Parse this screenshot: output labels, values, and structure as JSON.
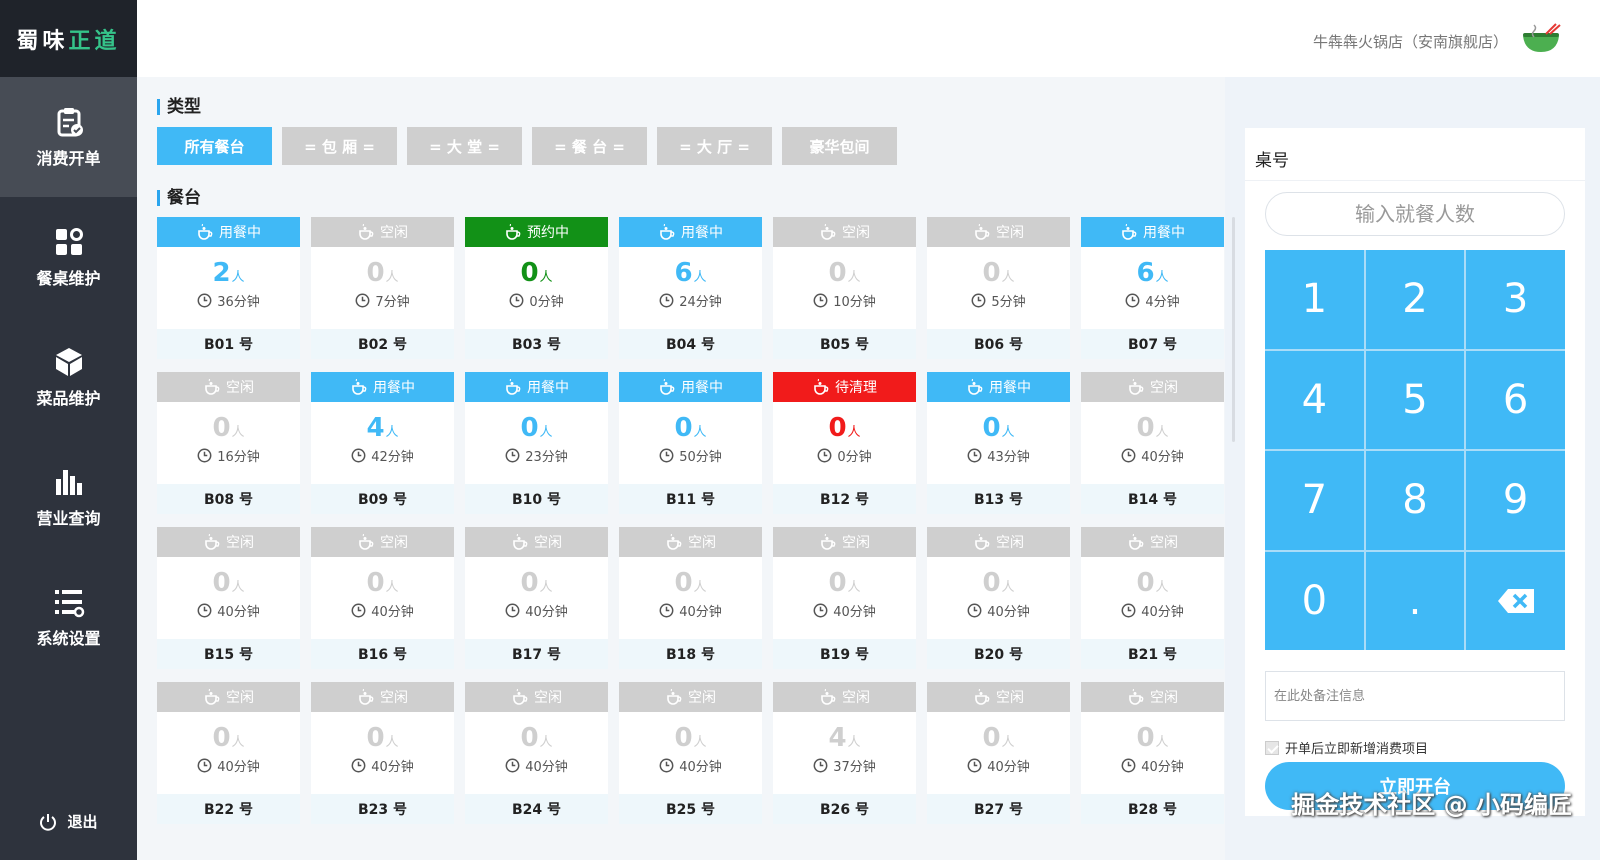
{
  "sidebar": {
    "logo": [
      "蜀",
      "味",
      "正",
      "道"
    ],
    "items": [
      {
        "label": "消费开单",
        "icon": "clipboard-icon"
      },
      {
        "label": "餐桌维护",
        "icon": "apps-icon"
      },
      {
        "label": "菜品维护",
        "icon": "cube-icon"
      },
      {
        "label": "营业查询",
        "icon": "bar-chart-icon"
      },
      {
        "label": "系统设置",
        "icon": "list-settings-icon"
      }
    ],
    "logout": "退出"
  },
  "header": {
    "store_name": "牛犇犇火锅店（安南旗舰店）",
    "store_icon": "hotpot-bowl-icon"
  },
  "types": {
    "title": "类型",
    "buttons": [
      "所有餐台",
      "= 包 厢 =",
      "= 大 堂 =",
      "= 餐 台 =",
      "= 大 厅 =",
      "豪华包间"
    ]
  },
  "tables": {
    "title": "餐台",
    "people_unit": "人",
    "items": [
      {
        "status": "busy",
        "status_label": "用餐中",
        "people": "2",
        "time": "36分钟",
        "number": "B01 号"
      },
      {
        "status": "idle",
        "status_label": "空闲",
        "people": "0",
        "time": "7分钟",
        "number": "B02 号"
      },
      {
        "status": "reserved",
        "status_label": "预约中",
        "people": "0",
        "time": "0分钟",
        "number": "B03 号"
      },
      {
        "status": "busy",
        "status_label": "用餐中",
        "people": "6",
        "time": "24分钟",
        "number": "B04 号"
      },
      {
        "status": "idle",
        "status_label": "空闲",
        "people": "0",
        "time": "10分钟",
        "number": "B05 号"
      },
      {
        "status": "idle",
        "status_label": "空闲",
        "people": "0",
        "time": "5分钟",
        "number": "B06 号"
      },
      {
        "status": "busy",
        "status_label": "用餐中",
        "people": "6",
        "time": "4分钟",
        "number": "B07 号"
      },
      {
        "status": "idle",
        "status_label": "空闲",
        "people": "0",
        "time": "16分钟",
        "number": "B08 号"
      },
      {
        "status": "busy",
        "status_label": "用餐中",
        "people": "4",
        "time": "42分钟",
        "number": "B09 号"
      },
      {
        "status": "busy",
        "status_label": "用餐中",
        "people": "0",
        "time": "23分钟",
        "number": "B10 号"
      },
      {
        "status": "busy",
        "status_label": "用餐中",
        "people": "0",
        "time": "50分钟",
        "number": "B11 号"
      },
      {
        "status": "clean",
        "status_label": "待清理",
        "people": "0",
        "time": "0分钟",
        "number": "B12 号"
      },
      {
        "status": "busy",
        "status_label": "用餐中",
        "people": "0",
        "time": "43分钟",
        "number": "B13 号"
      },
      {
        "status": "idle",
        "status_label": "空闲",
        "people": "0",
        "time": "40分钟",
        "number": "B14 号"
      },
      {
        "status": "idle",
        "status_label": "空闲",
        "people": "0",
        "time": "40分钟",
        "number": "B15 号"
      },
      {
        "status": "idle",
        "status_label": "空闲",
        "people": "0",
        "time": "40分钟",
        "number": "B16 号"
      },
      {
        "status": "idle",
        "status_label": "空闲",
        "people": "0",
        "time": "40分钟",
        "number": "B17 号"
      },
      {
        "status": "idle",
        "status_label": "空闲",
        "people": "0",
        "time": "40分钟",
        "number": "B18 号"
      },
      {
        "status": "idle",
        "status_label": "空闲",
        "people": "0",
        "time": "40分钟",
        "number": "B19 号"
      },
      {
        "status": "idle",
        "status_label": "空闲",
        "people": "0",
        "time": "40分钟",
        "number": "B20 号"
      },
      {
        "status": "idle",
        "status_label": "空闲",
        "people": "0",
        "time": "40分钟",
        "number": "B21 号"
      },
      {
        "status": "idle",
        "status_label": "空闲",
        "people": "0",
        "time": "40分钟",
        "number": "B22 号"
      },
      {
        "status": "idle",
        "status_label": "空闲",
        "people": "0",
        "time": "40分钟",
        "number": "B23 号"
      },
      {
        "status": "idle",
        "status_label": "空闲",
        "people": "0",
        "time": "40分钟",
        "number": "B24 号"
      },
      {
        "status": "idle",
        "status_label": "空闲",
        "people": "0",
        "time": "40分钟",
        "number": "B25 号"
      },
      {
        "status": "idle",
        "status_label": "空闲",
        "people": "4",
        "time": "37分钟",
        "number": "B26 号"
      },
      {
        "status": "idle",
        "status_label": "空闲",
        "people": "0",
        "time": "40分钟",
        "number": "B27 号"
      },
      {
        "status": "idle",
        "status_label": "空闲",
        "people": "0",
        "time": "40分钟",
        "number": "B28 号"
      }
    ]
  },
  "panel": {
    "table_no_label": "桌号",
    "guest_placeholder": "输入就餐人数",
    "keys": [
      "1",
      "2",
      "3",
      "4",
      "5",
      "6",
      "7",
      "8",
      "9",
      "0",
      ".",
      "⌫"
    ],
    "note_placeholder": "在此处备注信息",
    "checkbox_label": "开单后立即新增消费项目",
    "checkbox_checked": true,
    "open_button": "立即开台"
  },
  "colors": {
    "accent": "#40b9f6",
    "idle": "#cfcfcf",
    "reserved": "#129117",
    "clean": "#f11b1b",
    "sidebar": "#2e333d"
  },
  "watermark": "掘金技术社区 @ 小码编匠"
}
